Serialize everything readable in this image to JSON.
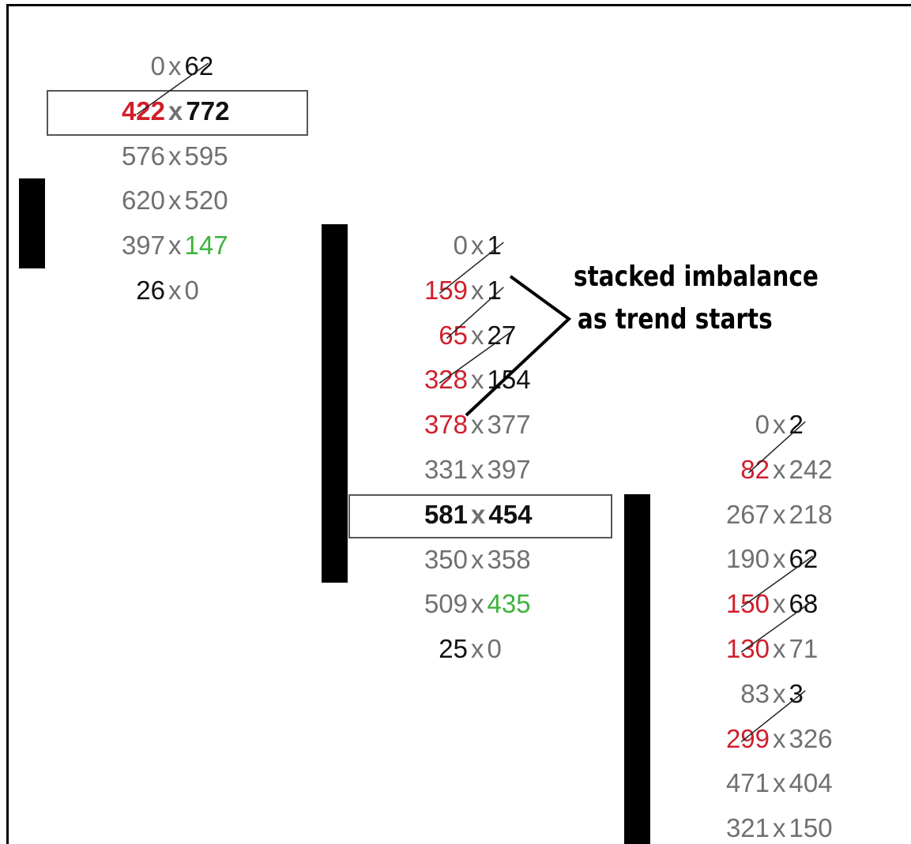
{
  "chart_data": {
    "type": "table",
    "title": "",
    "annotation": [
      "stacked imbalance",
      "as trend starts"
    ],
    "colors": {
      "normal": "#707070",
      "red": "#d01f2b",
      "green": "#3db33d",
      "black": "#111111",
      "bar": "#000000"
    },
    "columns": [
      {
        "rows": [
          {
            "bid": "0",
            "ask": "62",
            "bid_color": "normal",
            "ask_color": "black"
          },
          {
            "bid": "422",
            "ask": "772",
            "bid_color": "red",
            "ask_color": "black",
            "bold": true,
            "boxed": true
          },
          {
            "bid": "576",
            "ask": "595",
            "bid_color": "normal",
            "ask_color": "normal"
          },
          {
            "bid": "620",
            "ask": "520",
            "bid_color": "normal",
            "ask_color": "normal"
          },
          {
            "bid": "397",
            "ask": "147",
            "bid_color": "normal",
            "ask_color": "green"
          },
          {
            "bid": "26",
            "ask": "0",
            "bid_color": "black",
            "ask_color": "normal"
          }
        ],
        "diagonals": [
          [
            1,
            0
          ]
        ]
      },
      {
        "rows": [
          {
            "bid": "0",
            "ask": "1",
            "bid_color": "normal",
            "ask_color": "black"
          },
          {
            "bid": "159",
            "ask": "1",
            "bid_color": "red",
            "ask_color": "black"
          },
          {
            "bid": "65",
            "ask": "27",
            "bid_color": "red",
            "ask_color": "black"
          },
          {
            "bid": "328",
            "ask": "154",
            "bid_color": "red",
            "ask_color": "black"
          },
          {
            "bid": "378",
            "ask": "377",
            "bid_color": "red",
            "ask_color": "normal"
          },
          {
            "bid": "331",
            "ask": "397",
            "bid_color": "normal",
            "ask_color": "normal"
          },
          {
            "bid": "581",
            "ask": "454",
            "bid_color": "black",
            "ask_color": "black",
            "bold": true,
            "boxed": true
          },
          {
            "bid": "350",
            "ask": "358",
            "bid_color": "normal",
            "ask_color": "normal"
          },
          {
            "bid": "509",
            "ask": "435",
            "bid_color": "normal",
            "ask_color": "green"
          },
          {
            "bid": "25",
            "ask": "0",
            "bid_color": "black",
            "ask_color": "normal"
          }
        ],
        "diagonals": [
          [
            1,
            0
          ],
          [
            2,
            1
          ],
          [
            3,
            2
          ]
        ]
      },
      {
        "rows": [
          {
            "bid": "0",
            "ask": "2",
            "bid_color": "normal",
            "ask_color": "black"
          },
          {
            "bid": "82",
            "ask": "242",
            "bid_color": "red",
            "ask_color": "normal"
          },
          {
            "bid": "267",
            "ask": "218",
            "bid_color": "normal",
            "ask_color": "normal"
          },
          {
            "bid": "190",
            "ask": "62",
            "bid_color": "normal",
            "ask_color": "black"
          },
          {
            "bid": "150",
            "ask": "68",
            "bid_color": "red",
            "ask_color": "black"
          },
          {
            "bid": "130",
            "ask": "71",
            "bid_color": "red",
            "ask_color": "normal"
          },
          {
            "bid": "83",
            "ask": "3",
            "bid_color": "normal",
            "ask_color": "black"
          },
          {
            "bid": "299",
            "ask": "326",
            "bid_color": "red",
            "ask_color": "normal"
          },
          {
            "bid": "471",
            "ask": "404",
            "bid_color": "normal",
            "ask_color": "normal"
          },
          {
            "bid": "321",
            "ask": "150",
            "bid_color": "normal",
            "ask_color": "normal"
          }
        ],
        "diagonals": [
          [
            1,
            0
          ],
          [
            4,
            3
          ],
          [
            5,
            4
          ],
          [
            7,
            6
          ]
        ]
      }
    ]
  }
}
